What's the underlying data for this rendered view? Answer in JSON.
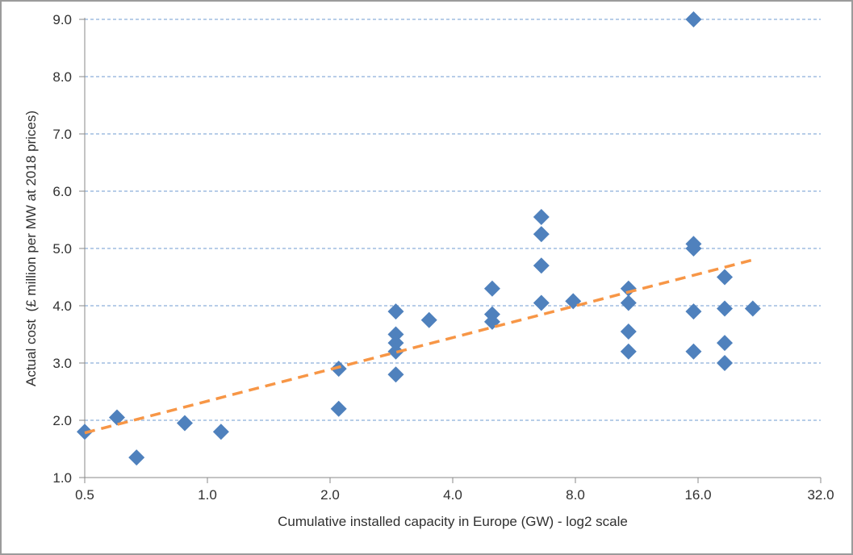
{
  "colors": {
    "marker": "#4f81bd",
    "trendline": "#f79646",
    "gridline": "#6f9bd1",
    "axis": "#8a8a8a",
    "text": "#303030",
    "frame_border": "#9b9b9b",
    "background": "#ffffff"
  },
  "chart_data": {
    "type": "scatter",
    "title": "",
    "xlabel": "Cumulative installed capacity in Europe (GW) - log2 scale",
    "ylabel": "Actual cost  (£ million per MW at 2018 prices)",
    "x_scale": "log2",
    "xlim": [
      0.5,
      32
    ],
    "ylim": [
      1,
      9
    ],
    "x_ticks": [
      "0.5",
      "1.0",
      "2.0",
      "4.0",
      "8.0",
      "16.0",
      "32.0"
    ],
    "x_tick_values": [
      0.5,
      1,
      2,
      4,
      8,
      16,
      32
    ],
    "y_ticks": [
      "1.0",
      "2.0",
      "3.0",
      "4.0",
      "5.0",
      "6.0",
      "7.0",
      "8.0",
      "9.0"
    ],
    "y_tick_values": [
      1,
      2,
      3,
      4,
      5,
      6,
      7,
      8,
      9
    ],
    "grid": "horizontal-dashed",
    "legend": "none",
    "series": [
      {
        "name": "actual-cost-points",
        "type": "scatter",
        "marker": "diamond",
        "color": "#4f81bd",
        "points": [
          [
            0.5,
            1.8
          ],
          [
            0.6,
            2.05
          ],
          [
            0.67,
            1.35
          ],
          [
            0.88,
            1.95
          ],
          [
            1.08,
            1.8
          ],
          [
            2.1,
            2.9
          ],
          [
            2.1,
            2.2
          ],
          [
            2.9,
            3.9
          ],
          [
            2.9,
            3.5
          ],
          [
            2.9,
            3.35
          ],
          [
            2.9,
            3.2
          ],
          [
            2.9,
            2.8
          ],
          [
            3.5,
            3.75
          ],
          [
            5.0,
            4.3
          ],
          [
            5.0,
            3.85
          ],
          [
            5.0,
            3.72
          ],
          [
            6.6,
            5.55
          ],
          [
            6.6,
            5.25
          ],
          [
            6.6,
            4.7
          ],
          [
            6.6,
            4.05
          ],
          [
            7.9,
            4.08
          ],
          [
            10.8,
            4.3
          ],
          [
            10.8,
            4.05
          ],
          [
            10.8,
            3.55
          ],
          [
            10.8,
            3.2
          ],
          [
            15.6,
            9.0
          ],
          [
            15.6,
            5.08
          ],
          [
            15.6,
            5.0
          ],
          [
            15.6,
            3.9
          ],
          [
            15.6,
            3.2
          ],
          [
            18.6,
            4.5
          ],
          [
            18.6,
            3.95
          ],
          [
            18.6,
            3.35
          ],
          [
            18.6,
            3.0
          ],
          [
            21.8,
            3.95
          ]
        ]
      },
      {
        "name": "trend-line",
        "type": "line",
        "style": "dashed",
        "color": "#f79646",
        "points": [
          [
            0.5,
            1.78
          ],
          [
            21.8,
            4.8
          ]
        ]
      }
    ]
  }
}
